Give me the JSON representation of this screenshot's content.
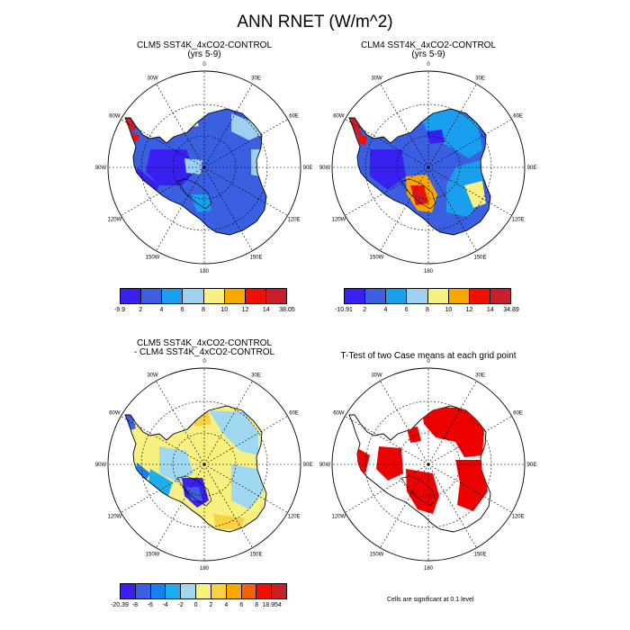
{
  "title": "ANN RNET (W/m^2)",
  "longitude_labels": [
    "0",
    "30E",
    "60E",
    "90E",
    "120E",
    "150E",
    "180",
    "150W",
    "120W",
    "90W",
    "60W",
    "30W"
  ],
  "panels": [
    {
      "id": "clm5",
      "title_lines": [
        "CLM5 SST4K_4xCO2-CONTROL",
        "(yrs 5-9)"
      ],
      "colorbar": {
        "colors": [
          "#3a20f0",
          "#3a5fe0",
          "#1a9ff0",
          "#9fd0f0",
          "#f8f080",
          "#f8a800",
          "#f01000",
          "#c81e28"
        ],
        "labels": [
          "-9.9",
          "2",
          "4",
          "6",
          "8",
          "10",
          "12",
          "14",
          "38.05"
        ]
      }
    },
    {
      "id": "clm4",
      "title_lines": [
        "CLM4 SST4K_4xCO2-CONTROL",
        "(yrs 5-9)"
      ],
      "colorbar": {
        "colors": [
          "#3a20f0",
          "#3a5fe0",
          "#1a9ff0",
          "#9fd0f0",
          "#f8f080",
          "#f8a800",
          "#f01000",
          "#c81e28"
        ],
        "labels": [
          "-10.91",
          "2",
          "4",
          "6",
          "8",
          "10",
          "12",
          "14",
          "34.89"
        ]
      }
    },
    {
      "id": "diff",
      "title_lines": [
        "CLM5 SST4K_4xCO2-CONTROL",
        "- CLM4 SST4K_4xCO2-CONTROL"
      ],
      "colorbar": {
        "colors": [
          "#3a20f0",
          "#3a5fe0",
          "#1a7ff0",
          "#1ab0f0",
          "#9fd8f0",
          "#f8f080",
          "#f8d040",
          "#f8a800",
          "#f86000",
          "#f01000",
          "#c81e28"
        ],
        "labels": [
          "-20.39",
          "-8",
          "-6",
          "-4",
          "-2",
          "0",
          "2",
          "4",
          "6",
          "8",
          "18.954"
        ]
      }
    },
    {
      "id": "ttest",
      "title_lines": [
        "T-Test of two Case means at each grid point"
      ],
      "note": "Cells are significant at 0.1 level"
    }
  ],
  "colors": {
    "significant": "#ee0000",
    "frame": "#000000"
  }
}
